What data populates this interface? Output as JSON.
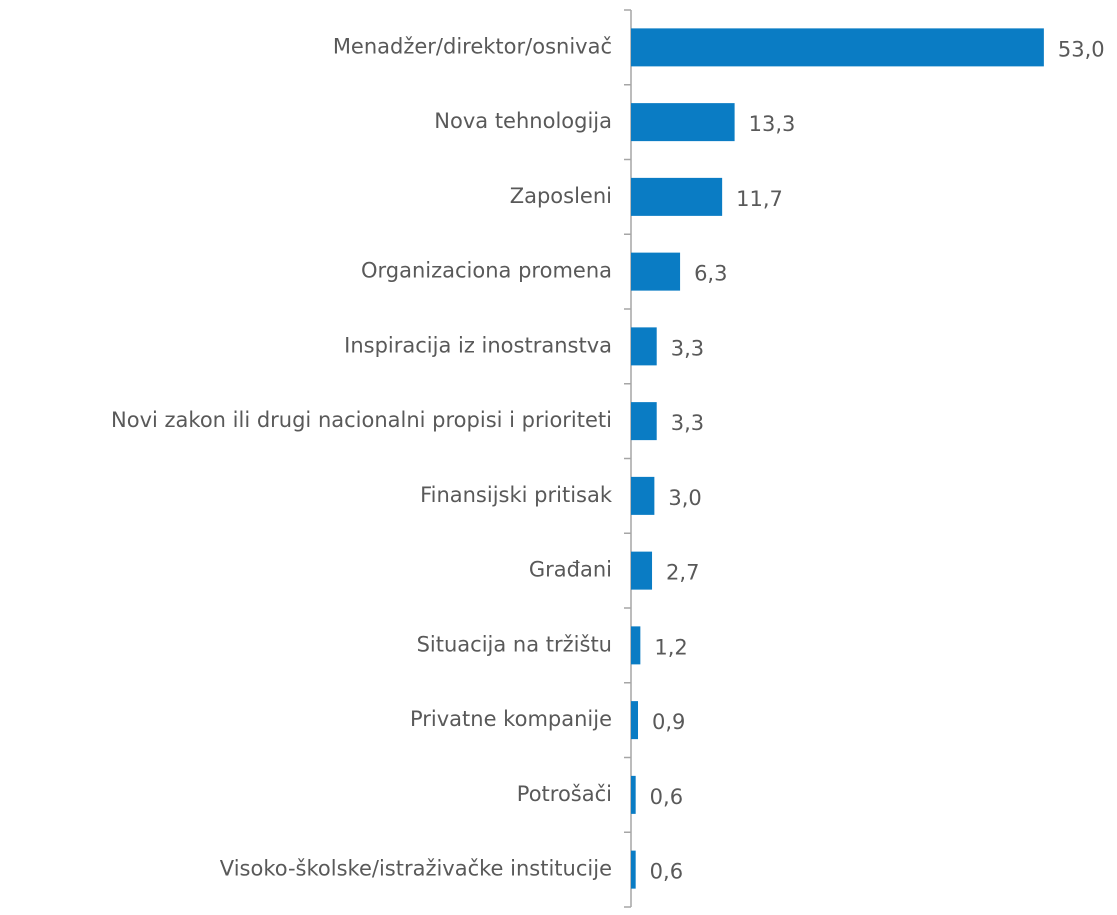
{
  "chart_data": {
    "type": "bar",
    "orientation": "horizontal",
    "categories": [
      "Menadžer/direktor/osnivač",
      "Nova tehnologija",
      "Zaposleni",
      "Organizaciona promena",
      "Inspiracija iz inostranstva",
      "Novi zakon ili drugi nacionalni propisi i prioriteti",
      "Finansijski pritisak",
      "Građani",
      "Situacija na tržištu",
      "Privatne kompanije",
      "Potrošači",
      "Visoko-školske/istraživačke institucije"
    ],
    "values": [
      53.0,
      13.3,
      11.7,
      6.3,
      3.3,
      3.3,
      3.0,
      2.7,
      1.2,
      0.9,
      0.6,
      0.6
    ],
    "value_labels": [
      "53,0",
      "13,3",
      "11,7",
      "6,3",
      "3,3",
      "3,3",
      "3,0",
      "2,7",
      "1,2",
      "0,9",
      "0,6",
      "0,6"
    ],
    "color": "#0a7cc4"
  }
}
